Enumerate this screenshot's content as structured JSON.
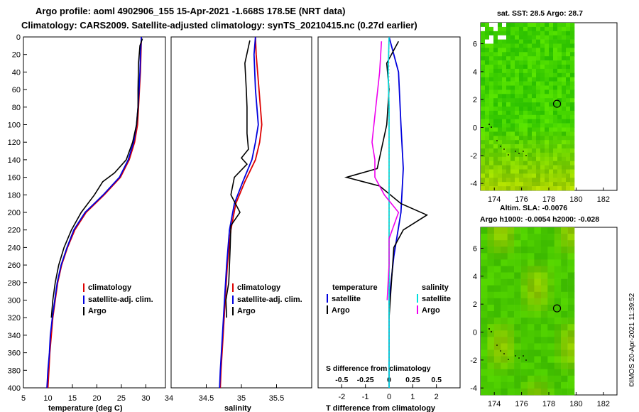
{
  "title_line1": "Argo profile: aoml 4902906_155 15-Apr-2021 -1.668S 178.5E (NRT data)",
  "title_line2": "Climatology: CARS2009. Satellite-adjusted climatology: synTS_20210415.nc (0.27d earlier)",
  "watermark": "©IMOS 20-Apr-2021 11:39:52",
  "colors": {
    "climatology": "#dd0000",
    "satellite": "#0000dd",
    "argo": "#000000",
    "tdiff": "#ee00ee",
    "sdiff": "#00dddd",
    "map_base": "#22c800"
  },
  "chart_data": [
    {
      "type": "line",
      "id": "temperature",
      "xlabel": "temperature (deg C)",
      "ylabel": "",
      "xlim": [
        5,
        34
      ],
      "ylim": [
        400,
        0
      ],
      "xticks": [
        "5",
        "10",
        "15",
        "20",
        "25",
        "30"
      ],
      "yticks": [
        "0",
        "20",
        "40",
        "60",
        "80",
        "100",
        "120",
        "140",
        "160",
        "180",
        "200",
        "220",
        "240",
        "260",
        "280",
        "300",
        "320",
        "340",
        "360",
        "380",
        "400"
      ],
      "legend": [
        "climatology",
        "satellite-adj. clim.",
        "Argo"
      ],
      "series": [
        {
          "name": "climatology",
          "points": [
            [
              29.1,
              0
            ],
            [
              29.0,
              20
            ],
            [
              28.9,
              40
            ],
            [
              28.7,
              60
            ],
            [
              28.5,
              80
            ],
            [
              28.3,
              100
            ],
            [
              27.7,
              120
            ],
            [
              26.6,
              140
            ],
            [
              24.8,
              160
            ],
            [
              21.5,
              180
            ],
            [
              17.8,
              200
            ],
            [
              15.5,
              220
            ],
            [
              14.0,
              240
            ],
            [
              12.8,
              260
            ],
            [
              12.0,
              280
            ],
            [
              11.5,
              300
            ],
            [
              11.0,
              320
            ],
            [
              10.7,
              340
            ],
            [
              10.4,
              360
            ],
            [
              10.2,
              380
            ],
            [
              10.0,
              400
            ]
          ]
        },
        {
          "name": "satellite-adj. clim.",
          "points": [
            [
              29.1,
              0
            ],
            [
              28.9,
              20
            ],
            [
              28.8,
              40
            ],
            [
              28.6,
              60
            ],
            [
              28.4,
              80
            ],
            [
              28.1,
              100
            ],
            [
              27.5,
              120
            ],
            [
              26.4,
              140
            ],
            [
              24.6,
              160
            ],
            [
              21.3,
              180
            ],
            [
              17.6,
              200
            ],
            [
              15.3,
              220
            ],
            [
              13.9,
              240
            ],
            [
              12.7,
              260
            ],
            [
              11.9,
              280
            ],
            [
              11.4,
              300
            ],
            [
              10.9,
              320
            ],
            [
              10.5,
              340
            ],
            [
              10.3,
              360
            ],
            [
              10.0,
              380
            ],
            [
              9.8,
              400
            ]
          ]
        },
        {
          "name": "Argo",
          "points": [
            [
              29.3,
              2
            ],
            [
              28.8,
              10
            ],
            [
              28.5,
              30
            ],
            [
              28.4,
              60
            ],
            [
              28.4,
              80
            ],
            [
              28.1,
              100
            ],
            [
              27.3,
              120
            ],
            [
              26.0,
              140
            ],
            [
              23.6,
              155
            ],
            [
              21.2,
              165
            ],
            [
              19.5,
              180
            ],
            [
              16.8,
              200
            ],
            [
              14.8,
              220
            ],
            [
              13.3,
              240
            ],
            [
              12.2,
              260
            ],
            [
              11.5,
              280
            ],
            [
              11.0,
              300
            ],
            [
              10.7,
              320
            ]
          ]
        }
      ]
    },
    {
      "type": "line",
      "id": "salinity",
      "xlabel": "salinity",
      "ylabel": "",
      "xlim": [
        34,
        36
      ],
      "ylim": [
        400,
        0
      ],
      "xticks": [
        "34.5",
        "35",
        "35.5"
      ],
      "yticks": [],
      "legend": [
        "climatology",
        "satellite-adj. clim.",
        "Argo"
      ],
      "series": [
        {
          "name": "climatology",
          "points": [
            [
              35.2,
              0
            ],
            [
              35.21,
              20
            ],
            [
              35.25,
              60
            ],
            [
              35.29,
              100
            ],
            [
              35.26,
              120
            ],
            [
              35.2,
              140
            ],
            [
              35.05,
              165
            ],
            [
              34.92,
              190
            ],
            [
              34.85,
              220
            ],
            [
              34.8,
              260
            ],
            [
              34.77,
              300
            ],
            [
              34.74,
              340
            ],
            [
              34.71,
              380
            ],
            [
              34.7,
              400
            ]
          ]
        },
        {
          "name": "satellite-adj. clim.",
          "points": [
            [
              35.2,
              0
            ],
            [
              35.18,
              20
            ],
            [
              35.2,
              60
            ],
            [
              35.24,
              100
            ],
            [
              35.2,
              120
            ],
            [
              35.15,
              140
            ],
            [
              35.02,
              165
            ],
            [
              34.9,
              190
            ],
            [
              34.83,
              220
            ],
            [
              34.79,
              260
            ],
            [
              34.76,
              300
            ],
            [
              34.73,
              340
            ],
            [
              34.7,
              380
            ],
            [
              34.69,
              400
            ]
          ]
        },
        {
          "name": "Argo",
          "points": [
            [
              35.12,
              4
            ],
            [
              35.05,
              30
            ],
            [
              35.07,
              60
            ],
            [
              35.08,
              80
            ],
            [
              35.08,
              110
            ],
            [
              35.1,
              128
            ],
            [
              35.0,
              138
            ],
            [
              35.08,
              145
            ],
            [
              34.9,
              160
            ],
            [
              34.85,
              180
            ],
            [
              34.98,
              200
            ],
            [
              34.85,
              215
            ],
            [
              34.84,
              240
            ],
            [
              34.82,
              280
            ],
            [
              34.78,
              300
            ],
            [
              34.79,
              320
            ]
          ]
        }
      ]
    },
    {
      "type": "line",
      "id": "difference",
      "xlabel": "T difference from climatology",
      "xlabel_top": "S difference from climatology",
      "xlim": [
        -3,
        3
      ],
      "ylim": [
        400,
        0
      ],
      "xticks": [
        "-2",
        "-1",
        "0",
        "1",
        "2"
      ],
      "xticks_top": [
        "-0.5",
        "-0.25",
        "0",
        "0.25",
        "0.5"
      ],
      "legend_left_title": "temperature",
      "legend_left": [
        "satellite",
        "Argo"
      ],
      "legend_right_title": "salinity",
      "legend_right": [
        "satellite",
        "Argo"
      ],
      "series": [
        {
          "name": "temperature satellite",
          "points": [
            [
              0,
              0
            ],
            [
              0.4,
              40
            ],
            [
              0.5,
              100
            ],
            [
              0.6,
              150
            ],
            [
              0.5,
              200
            ],
            [
              0.2,
              250
            ],
            [
              0,
              300
            ],
            [
              0,
              400
            ]
          ]
        },
        {
          "name": "temperature Argo",
          "points": [
            [
              0.4,
              5
            ],
            [
              -0.1,
              30
            ],
            [
              0,
              60
            ],
            [
              -0.1,
              100
            ],
            [
              -0.5,
              150
            ],
            [
              -1.8,
              160
            ],
            [
              -0.4,
              170
            ],
            [
              0.5,
              190
            ],
            [
              1.6,
              203
            ],
            [
              0.6,
              220
            ],
            [
              0.2,
              240
            ],
            [
              0.1,
              280
            ],
            [
              0,
              320
            ]
          ]
        },
        {
          "name": "salinity satellite",
          "points": [
            [
              0,
              0
            ],
            [
              -0.01,
              40
            ],
            [
              0,
              80
            ],
            [
              0,
              120
            ],
            [
              0,
              160
            ],
            [
              0,
              200
            ],
            [
              0,
              240
            ],
            [
              0,
              300
            ],
            [
              0,
              400
            ]
          ]
        },
        {
          "name": "salinity Argo",
          "points": [
            [
              -0.08,
              5
            ],
            [
              -0.1,
              40
            ],
            [
              -0.14,
              80
            ],
            [
              -0.18,
              120
            ],
            [
              -0.15,
              140
            ],
            [
              -0.15,
              160
            ],
            [
              -0.05,
              180
            ],
            [
              0.1,
              200
            ],
            [
              0,
              230
            ],
            [
              0,
              260
            ],
            [
              -0.02,
              300
            ]
          ]
        }
      ]
    },
    {
      "type": "heatmap",
      "id": "sst-map",
      "title": "sat. SST: 28.5 Argo: 28.7",
      "xticks": [
        "174",
        "176",
        "178",
        "180",
        "182"
      ],
      "yticks": [
        "6",
        "4",
        "2",
        "0",
        "-2",
        "-4"
      ],
      "xlim": [
        173,
        183
      ],
      "ylim": [
        -4.5,
        7.5
      ],
      "marker": [
        178.6,
        1.7
      ]
    },
    {
      "type": "heatmap",
      "id": "sla-map",
      "title_line1": "Altim. SLA: -0.0076",
      "title_line2": "Argo h1000: -0.0054 h2000: -0.028",
      "xticks": [
        "174",
        "176",
        "178",
        "180",
        "182"
      ],
      "yticks": [
        "6",
        "4",
        "2",
        "0",
        "-2",
        "-4"
      ],
      "xlim": [
        173,
        183
      ],
      "ylim": [
        -4.5,
        7.5
      ],
      "marker": [
        178.6,
        1.7
      ]
    }
  ]
}
